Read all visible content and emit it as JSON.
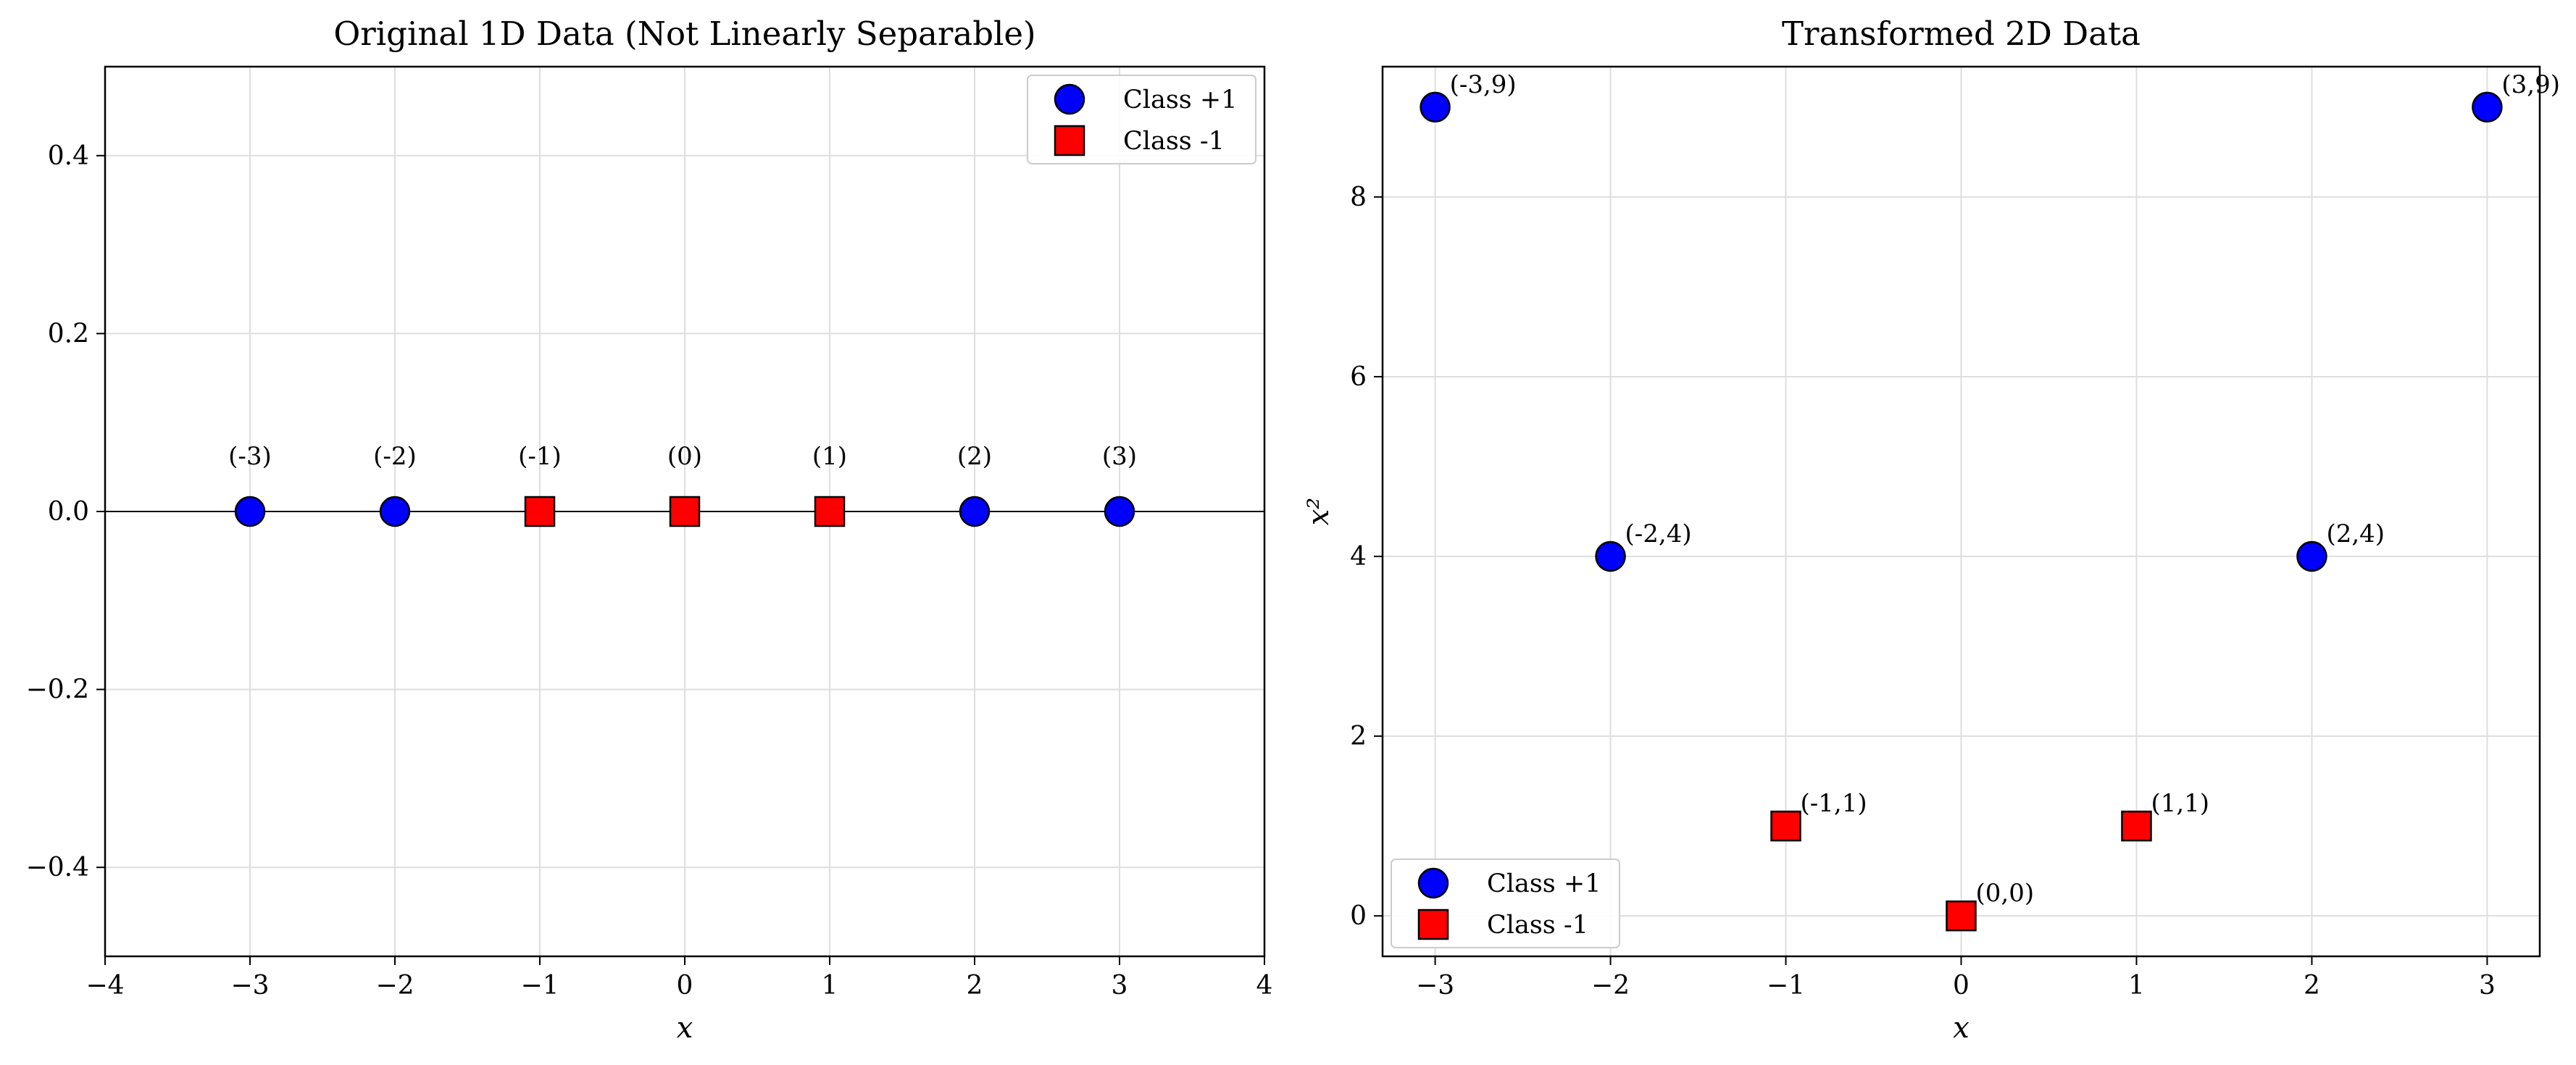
{
  "chart_data": [
    {
      "type": "scatter",
      "title": "Original 1D Data (Not Linearly Separable)",
      "xlabel": "x",
      "ylabel": "",
      "xlim": [
        -4,
        4
      ],
      "ylim": [
        -0.5,
        0.5
      ],
      "xticks": [
        "−4",
        "−3",
        "−2",
        "−1",
        "0",
        "1",
        "2",
        "3",
        "4"
      ],
      "yticks": [
        "−0.4",
        "−0.2",
        "0.0",
        "0.2",
        "0.4"
      ],
      "grid": true,
      "zero_line": true,
      "legend_position": "top-right",
      "series": [
        {
          "name": "Class +1",
          "marker": "circle",
          "color": "#0000ff",
          "points": [
            {
              "x": -3,
              "y": 0,
              "label": "(-3)"
            },
            {
              "x": -2,
              "y": 0,
              "label": "(-2)"
            },
            {
              "x": 2,
              "y": 0,
              "label": "(2)"
            },
            {
              "x": 3,
              "y": 0,
              "label": "(3)"
            }
          ]
        },
        {
          "name": "Class -1",
          "marker": "square",
          "color": "#ff0000",
          "points": [
            {
              "x": -1,
              "y": 0,
              "label": "(-1)"
            },
            {
              "x": 0,
              "y": 0,
              "label": "(0)"
            },
            {
              "x": 1,
              "y": 0,
              "label": "(1)"
            }
          ]
        }
      ]
    },
    {
      "type": "scatter",
      "title": "Transformed 2D Data",
      "xlabel": "x",
      "ylabel": "x²",
      "xlim": [
        -3.3,
        3.3
      ],
      "ylim": [
        -0.45,
        9.45
      ],
      "xticks": [
        "−3",
        "−2",
        "−1",
        "0",
        "1",
        "2",
        "3"
      ],
      "yticks": [
        "0",
        "2",
        "4",
        "6",
        "8"
      ],
      "grid": true,
      "legend_position": "bottom-left",
      "series": [
        {
          "name": "Class +1",
          "marker": "circle",
          "color": "#0000ff",
          "points": [
            {
              "x": -3,
              "y": 9,
              "label": "(-3,9)"
            },
            {
              "x": -2,
              "y": 4,
              "label": "(-2,4)"
            },
            {
              "x": 2,
              "y": 4,
              "label": "(2,4)"
            },
            {
              "x": 3,
              "y": 9,
              "label": "(3,9)"
            }
          ]
        },
        {
          "name": "Class -1",
          "marker": "square",
          "color": "#ff0000",
          "points": [
            {
              "x": -1,
              "y": 1,
              "label": "(-1,1)"
            },
            {
              "x": 0,
              "y": 0,
              "label": "(0,0)"
            },
            {
              "x": 1,
              "y": 1,
              "label": "(1,1)"
            }
          ]
        }
      ]
    }
  ]
}
